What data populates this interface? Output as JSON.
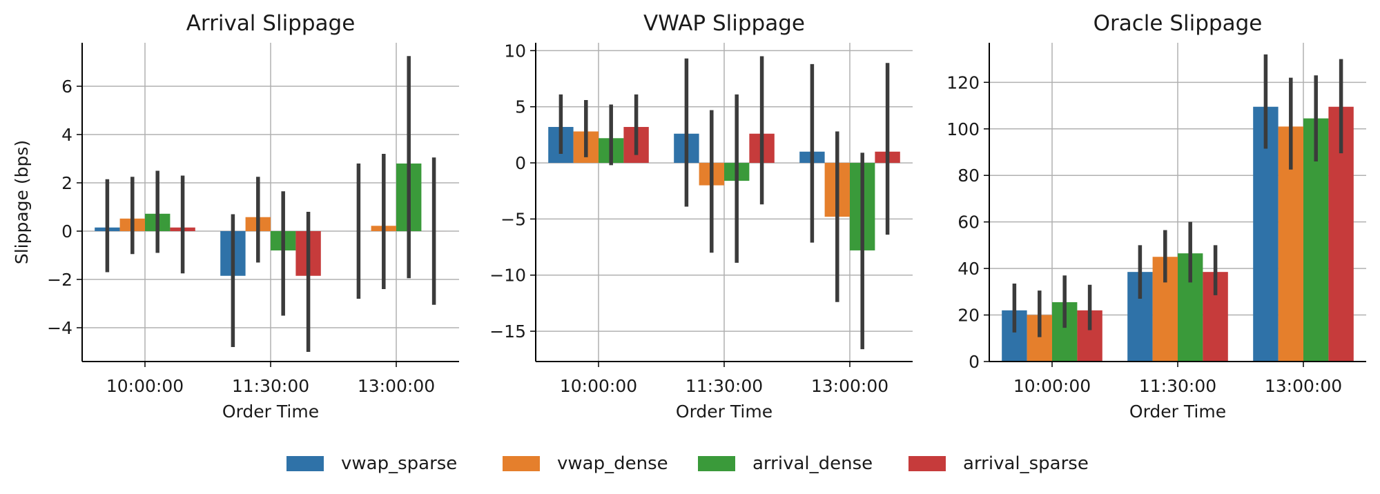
{
  "chart_data": [
    {
      "type": "bar",
      "title": "Arrival Slippage",
      "xlabel": "Order Time",
      "ylabel": "Slippage (bps)",
      "ylim": [
        -5.4,
        7.8
      ],
      "yticks": [
        -4,
        -2,
        0,
        2,
        4,
        6
      ],
      "grid": true,
      "categories": [
        "10:00:00",
        "11:30:00",
        "13:00:00"
      ],
      "series": [
        {
          "name": "vwap_sparse",
          "values": [
            0.15,
            -1.85,
            0.0
          ],
          "ci_low": [
            -1.7,
            -4.8,
            -2.8
          ],
          "ci_high": [
            2.15,
            0.7,
            2.8
          ]
        },
        {
          "name": "vwap_dense",
          "values": [
            0.52,
            0.58,
            0.22
          ],
          "ci_low": [
            -0.95,
            -1.3,
            -2.4
          ],
          "ci_high": [
            2.25,
            2.25,
            3.2
          ]
        },
        {
          "name": "arrival_dense",
          "values": [
            0.72,
            -0.8,
            2.8
          ],
          "ci_low": [
            -0.9,
            -3.5,
            -1.95
          ],
          "ci_high": [
            2.5,
            1.65,
            7.25
          ]
        },
        {
          "name": "arrival_sparse",
          "values": [
            0.15,
            -1.85,
            0.0
          ],
          "ci_low": [
            -1.75,
            -5.0,
            -3.05
          ],
          "ci_high": [
            2.3,
            0.8,
            3.05
          ]
        }
      ]
    },
    {
      "type": "bar",
      "title": "VWAP Slippage",
      "xlabel": "Order Time",
      "ylabel": "",
      "ylim": [
        -17.7,
        10.7
      ],
      "yticks": [
        -15,
        -10,
        -5,
        0,
        5,
        10
      ],
      "grid": true,
      "categories": [
        "10:00:00",
        "11:30:00",
        "13:00:00"
      ],
      "series": [
        {
          "name": "vwap_sparse",
          "values": [
            3.2,
            2.6,
            1.0
          ],
          "ci_low": [
            0.8,
            -3.9,
            -7.1
          ],
          "ci_high": [
            6.1,
            9.3,
            8.8
          ]
        },
        {
          "name": "vwap_dense",
          "values": [
            2.8,
            -2.0,
            -4.8
          ],
          "ci_low": [
            0.5,
            -8.0,
            -12.4
          ],
          "ci_high": [
            5.6,
            4.7,
            2.8
          ]
        },
        {
          "name": "arrival_dense",
          "values": [
            2.2,
            -1.6,
            -7.8
          ],
          "ci_low": [
            -0.2,
            -8.9,
            -16.6
          ],
          "ci_high": [
            5.2,
            6.1,
            0.9
          ]
        },
        {
          "name": "arrival_sparse",
          "values": [
            3.2,
            2.6,
            1.0
          ],
          "ci_low": [
            0.7,
            -3.7,
            -6.4
          ],
          "ci_high": [
            6.1,
            9.5,
            8.9
          ]
        }
      ]
    },
    {
      "type": "bar",
      "title": "Oracle Slippage",
      "xlabel": "Order Time",
      "ylabel": "",
      "ylim": [
        0,
        137
      ],
      "yticks": [
        0,
        20,
        40,
        60,
        80,
        100,
        120
      ],
      "grid": true,
      "categories": [
        "10:00:00",
        "11:30:00",
        "13:00:00"
      ],
      "series": [
        {
          "name": "vwap_sparse",
          "values": [
            22,
            38.5,
            109.5
          ],
          "ci_low": [
            12.5,
            27,
            91.5
          ],
          "ci_high": [
            33.5,
            50,
            132
          ]
        },
        {
          "name": "vwap_dense",
          "values": [
            20,
            45,
            101
          ],
          "ci_low": [
            10.5,
            34,
            82.5
          ],
          "ci_high": [
            30.5,
            56.5,
            122
          ]
        },
        {
          "name": "arrival_dense",
          "values": [
            25.5,
            46.5,
            104.5
          ],
          "ci_low": [
            14.5,
            34,
            86
          ],
          "ci_high": [
            37,
            60,
            123
          ]
        },
        {
          "name": "arrival_sparse",
          "values": [
            22,
            38.5,
            109.5
          ],
          "ci_low": [
            13.5,
            28.5,
            89.5
          ],
          "ci_high": [
            33,
            50,
            130
          ]
        }
      ]
    }
  ],
  "legend": {
    "placement": "bottom-center",
    "entries": [
      "vwap_sparse",
      "vwap_dense",
      "arrival_dense",
      "arrival_sparse"
    ]
  },
  "colors": {
    "vwap_sparse": "#2f72a8",
    "vwap_dense": "#e57f2c",
    "arrival_dense": "#3a9a3a",
    "arrival_sparse": "#c63b3b",
    "errorbar": "#3b3b3b",
    "grid": "#b0b0b0",
    "axis": "#000000"
  }
}
